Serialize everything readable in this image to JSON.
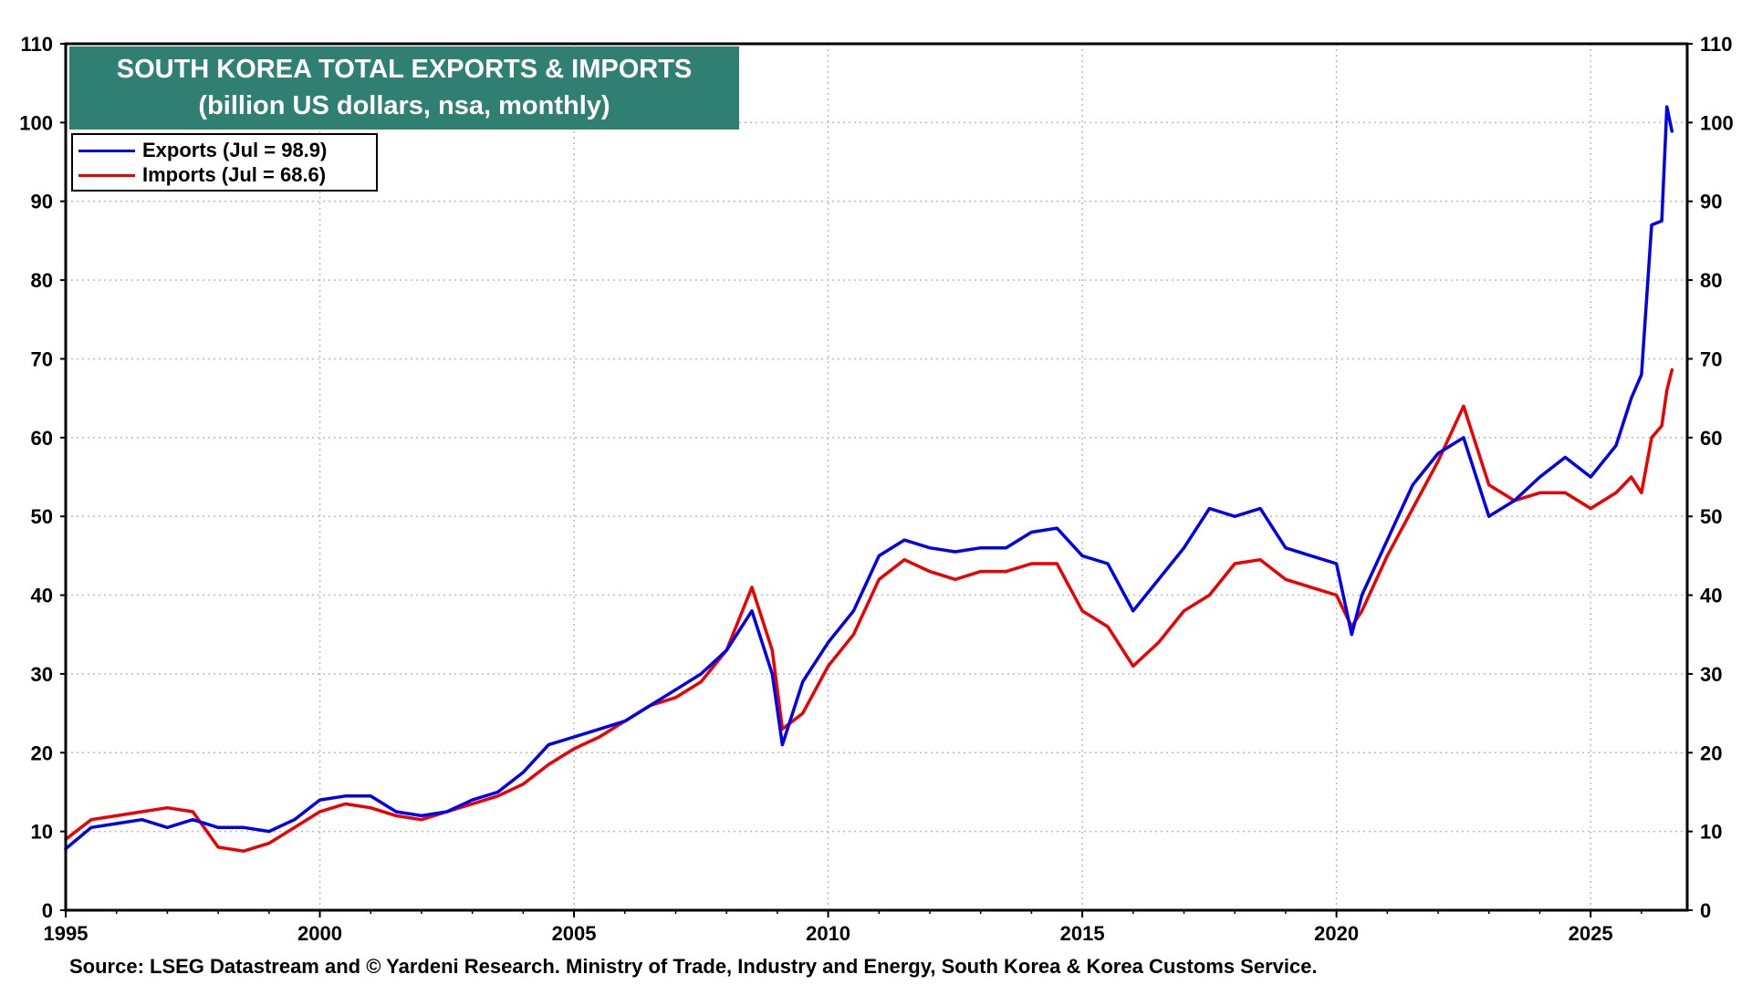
{
  "chart_data": {
    "type": "line",
    "title": "SOUTH KOREA TOTAL EXPORTS & IMPORTS",
    "subtitle": "(billion US dollars, nsa, monthly)",
    "ylim": [
      0,
      110
    ],
    "xlim": [
      1995,
      2026.9
    ],
    "y_ticks": [
      "0",
      "10",
      "20",
      "30",
      "40",
      "50",
      "60",
      "70",
      "80",
      "90",
      "100",
      "110"
    ],
    "x_ticks": [
      "1995",
      "2000",
      "2005",
      "2010",
      "2015",
      "2020",
      "2025"
    ],
    "grid": true,
    "legend_position": "top-left",
    "series": [
      {
        "name": "Exports (Jul = 98.9)",
        "color": "#0000ee",
        "points": [
          [
            1995.0,
            7.8
          ],
          [
            1995.5,
            10.5
          ],
          [
            1996.0,
            11.0
          ],
          [
            1996.5,
            11.5
          ],
          [
            1997.0,
            10.5
          ],
          [
            1997.5,
            11.5
          ],
          [
            1998.0,
            10.5
          ],
          [
            1998.5,
            10.5
          ],
          [
            1999.0,
            10.0
          ],
          [
            1999.5,
            11.5
          ],
          [
            2000.0,
            14.0
          ],
          [
            2000.5,
            14.5
          ],
          [
            2001.0,
            14.5
          ],
          [
            2001.5,
            12.5
          ],
          [
            2002.0,
            12.0
          ],
          [
            2002.5,
            12.5
          ],
          [
            2003.0,
            14.0
          ],
          [
            2003.5,
            15.0
          ],
          [
            2004.0,
            17.5
          ],
          [
            2004.5,
            21.0
          ],
          [
            2005.0,
            22.0
          ],
          [
            2005.5,
            23.0
          ],
          [
            2006.0,
            24.0
          ],
          [
            2006.5,
            26.0
          ],
          [
            2007.0,
            28.0
          ],
          [
            2007.5,
            30.0
          ],
          [
            2008.0,
            33.0
          ],
          [
            2008.5,
            38.0
          ],
          [
            2008.9,
            30.0
          ],
          [
            2009.1,
            21.0
          ],
          [
            2009.5,
            29.0
          ],
          [
            2010.0,
            34.0
          ],
          [
            2010.5,
            38.0
          ],
          [
            2011.0,
            45.0
          ],
          [
            2011.5,
            47.0
          ],
          [
            2012.0,
            46.0
          ],
          [
            2012.5,
            45.5
          ],
          [
            2013.0,
            46.0
          ],
          [
            2013.5,
            46.0
          ],
          [
            2014.0,
            48.0
          ],
          [
            2014.5,
            48.5
          ],
          [
            2015.0,
            45.0
          ],
          [
            2015.5,
            44.0
          ],
          [
            2016.0,
            38.0
          ],
          [
            2016.5,
            42.0
          ],
          [
            2017.0,
            46.0
          ],
          [
            2017.5,
            51.0
          ],
          [
            2018.0,
            50.0
          ],
          [
            2018.5,
            51.0
          ],
          [
            2019.0,
            46.0
          ],
          [
            2019.5,
            45.0
          ],
          [
            2020.0,
            44.0
          ],
          [
            2020.3,
            35.0
          ],
          [
            2020.5,
            40.0
          ],
          [
            2021.0,
            47.0
          ],
          [
            2021.5,
            54.0
          ],
          [
            2022.0,
            58.0
          ],
          [
            2022.5,
            60.0
          ],
          [
            2023.0,
            50.0
          ],
          [
            2023.5,
            52.0
          ],
          [
            2024.0,
            55.0
          ],
          [
            2024.5,
            57.5
          ],
          [
            2025.0,
            55.0
          ],
          [
            2025.5,
            59.0
          ],
          [
            2025.8,
            65.0
          ],
          [
            2026.0,
            68.0
          ],
          [
            2026.2,
            87.0
          ],
          [
            2026.4,
            87.5
          ],
          [
            2026.5,
            102.0
          ],
          [
            2026.6,
            98.9
          ]
        ]
      },
      {
        "name": "Imports (Jul = 68.6)",
        "color": "#ee0000",
        "points": [
          [
            1995.0,
            9.0
          ],
          [
            1995.5,
            11.5
          ],
          [
            1996.0,
            12.0
          ],
          [
            1996.5,
            12.5
          ],
          [
            1997.0,
            13.0
          ],
          [
            1997.5,
            12.5
          ],
          [
            1998.0,
            8.0
          ],
          [
            1998.5,
            7.5
          ],
          [
            1999.0,
            8.5
          ],
          [
            1999.5,
            10.5
          ],
          [
            2000.0,
            12.5
          ],
          [
            2000.5,
            13.5
          ],
          [
            2001.0,
            13.0
          ],
          [
            2001.5,
            12.0
          ],
          [
            2002.0,
            11.5
          ],
          [
            2002.5,
            12.5
          ],
          [
            2003.0,
            13.5
          ],
          [
            2003.5,
            14.5
          ],
          [
            2004.0,
            16.0
          ],
          [
            2004.5,
            18.5
          ],
          [
            2005.0,
            20.5
          ],
          [
            2005.5,
            22.0
          ],
          [
            2006.0,
            24.0
          ],
          [
            2006.5,
            26.0
          ],
          [
            2007.0,
            27.0
          ],
          [
            2007.5,
            29.0
          ],
          [
            2008.0,
            33.0
          ],
          [
            2008.5,
            41.0
          ],
          [
            2008.9,
            33.0
          ],
          [
            2009.1,
            23.0
          ],
          [
            2009.5,
            25.0
          ],
          [
            2010.0,
            31.0
          ],
          [
            2010.5,
            35.0
          ],
          [
            2011.0,
            42.0
          ],
          [
            2011.5,
            44.5
          ],
          [
            2012.0,
            43.0
          ],
          [
            2012.5,
            42.0
          ],
          [
            2013.0,
            43.0
          ],
          [
            2013.5,
            43.0
          ],
          [
            2014.0,
            44.0
          ],
          [
            2014.5,
            44.0
          ],
          [
            2015.0,
            38.0
          ],
          [
            2015.5,
            36.0
          ],
          [
            2016.0,
            31.0
          ],
          [
            2016.5,
            34.0
          ],
          [
            2017.0,
            38.0
          ],
          [
            2017.5,
            40.0
          ],
          [
            2018.0,
            44.0
          ],
          [
            2018.5,
            44.5
          ],
          [
            2019.0,
            42.0
          ],
          [
            2019.5,
            41.0
          ],
          [
            2020.0,
            40.0
          ],
          [
            2020.3,
            36.0
          ],
          [
            2020.5,
            38.0
          ],
          [
            2021.0,
            45.0
          ],
          [
            2021.5,
            51.0
          ],
          [
            2022.0,
            57.0
          ],
          [
            2022.5,
            64.0
          ],
          [
            2023.0,
            54.0
          ],
          [
            2023.5,
            52.0
          ],
          [
            2024.0,
            53.0
          ],
          [
            2024.5,
            53.0
          ],
          [
            2025.0,
            51.0
          ],
          [
            2025.5,
            53.0
          ],
          [
            2025.8,
            55.0
          ],
          [
            2026.0,
            53.0
          ],
          [
            2026.2,
            60.0
          ],
          [
            2026.4,
            61.5
          ],
          [
            2026.5,
            66.0
          ],
          [
            2026.6,
            68.6
          ]
        ]
      }
    ]
  },
  "source": "Source: LSEG Datastream and © Yardeni Research. Ministry of Trade, Industry and Energy, South Korea & Korea Customs Service."
}
